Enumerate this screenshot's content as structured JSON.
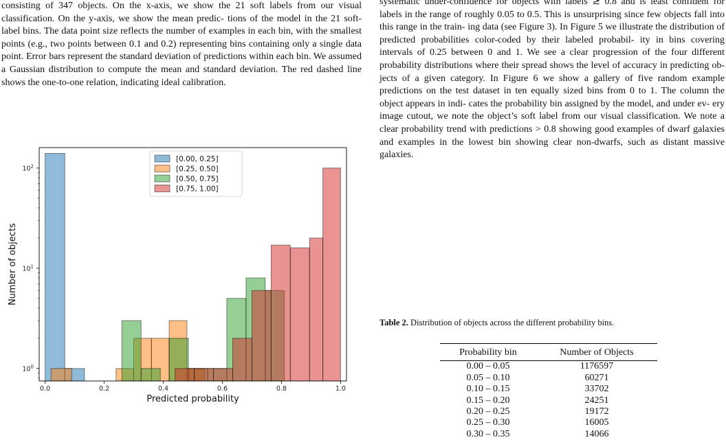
{
  "left_column": {
    "lines": [
      "consisting of 347 objects. On the x-axis, we show the 21 soft labels",
      "from our visual classification. On the y-axis, we show the mean predic-",
      "tions of the model in the 21 soft-label bins. The data point size reflects",
      "the number of examples in each bin, with the smallest points (e.g., two",
      "points between 0.1 and 0.2) representing bins containing only a single",
      "data point. Error bars represent the standard deviation of predictions",
      "within each bin. We assumed a Gaussian distribution to compute the",
      "mean and standard deviation. The red dashed line shows the one-to-one",
      "relation, indicating ideal calibration."
    ]
  },
  "right_column": {
    "lines": [
      "systematic under-confidence for objects with labels ≳ 0.8 and is",
      "least confident for labels in the range of roughly 0.05 to 0.5. This",
      "is unsurprising since few objects fall into this range in the train-",
      "ing data (see Figure 3). In Figure 5 we illustrate the distribution",
      "of predicted probabilities color-coded by their labeled probabil-",
      "ity in bins covering intervals of 0.25 between 0 and 1. We see",
      "a clear progression of the four different probability distributions",
      "where their spread shows the level of accuracy in predicting ob-",
      "jects of a given category. In Figure 6 we show a gallery of five",
      "random example predictions on the test dataset in ten equally",
      "sized bins from 0 to 1. The column the object appears in indi-",
      "cates the probability bin assigned by the model, and under ev-",
      "ery image cutout, we note the object’s soft label from our visual",
      "classification. We note a clear probability trend with predictions",
      "> 0.8 showing good examples of dwarf galaxies and examples in",
      "the lowest bin showing clear non-dwarfs, such as distant massive",
      "galaxies."
    ]
  },
  "table_caption": {
    "label": "Table 2.",
    "text": " Distribution of objects across the different probability bins."
  },
  "table": {
    "headers": [
      "Probability bin",
      "Number of Objects"
    ],
    "rows": [
      [
        "0.00 – 0.05",
        "1176597"
      ],
      [
        "0.05 – 0.10",
        "60271"
      ],
      [
        "0.10 – 0.15",
        "33702"
      ],
      [
        "0.15 – 0.20",
        "24251"
      ],
      [
        "0.20 – 0.25",
        "19172"
      ],
      [
        "0.25 – 0.30",
        "16005"
      ],
      [
        "0.30 – 0.35",
        "14066"
      ]
    ]
  },
  "chart_data": {
    "type": "bar",
    "subtype": "step-histogram",
    "xlabel": "Predicted probability",
    "ylabel": "Number of objects",
    "yscale": "log",
    "xlim": [
      -0.02,
      1.02
    ],
    "ylim": [
      0.75,
      160
    ],
    "x_ticks": [
      "0.0",
      "0.2",
      "0.4",
      "0.6",
      "0.8",
      "1.0"
    ],
    "y_ticks": [
      {
        "value": 1,
        "base": "10",
        "exp": "0"
      },
      {
        "value": 10,
        "base": "10",
        "exp": "1"
      },
      {
        "value": 100,
        "base": "10",
        "exp": "2"
      }
    ],
    "legend_position": "top-center",
    "series": [
      {
        "name": "[0.00, 0.25]",
        "color": "#1f77b4",
        "bins": [
          [
            0.0,
            0.0667,
            140
          ],
          [
            0.0667,
            0.1333,
            1
          ]
        ]
      },
      {
        "name": "[0.25, 0.50]",
        "color": "#ff7f0e",
        "bins": [
          [
            0.02,
            0.09,
            1
          ],
          [
            0.24,
            0.3,
            1
          ],
          [
            0.3,
            0.36,
            2
          ],
          [
            0.36,
            0.42,
            2
          ],
          [
            0.42,
            0.48,
            3
          ],
          [
            0.48,
            0.54,
            1
          ]
        ]
      },
      {
        "name": "[0.50, 0.75]",
        "color": "#2ca02c",
        "bins": [
          [
            0.26,
            0.325,
            3
          ],
          [
            0.325,
            0.39,
            1
          ],
          [
            0.42,
            0.485,
            2
          ],
          [
            0.485,
            0.55,
            1
          ],
          [
            0.55,
            0.615,
            1
          ],
          [
            0.615,
            0.68,
            5
          ],
          [
            0.68,
            0.745,
            8
          ],
          [
            0.745,
            0.81,
            6
          ]
        ]
      },
      {
        "name": "[0.75, 1.00]",
        "color": "#d62728",
        "bins": [
          [
            0.44,
            0.505,
            1
          ],
          [
            0.505,
            0.57,
            1
          ],
          [
            0.57,
            0.635,
            1
          ],
          [
            0.635,
            0.7,
            2
          ],
          [
            0.7,
            0.765,
            6
          ],
          [
            0.765,
            0.83,
            17
          ],
          [
            0.83,
            0.895,
            16
          ],
          [
            0.895,
            0.94,
            20
          ],
          [
            0.94,
            1.0,
            100
          ]
        ]
      }
    ]
  }
}
